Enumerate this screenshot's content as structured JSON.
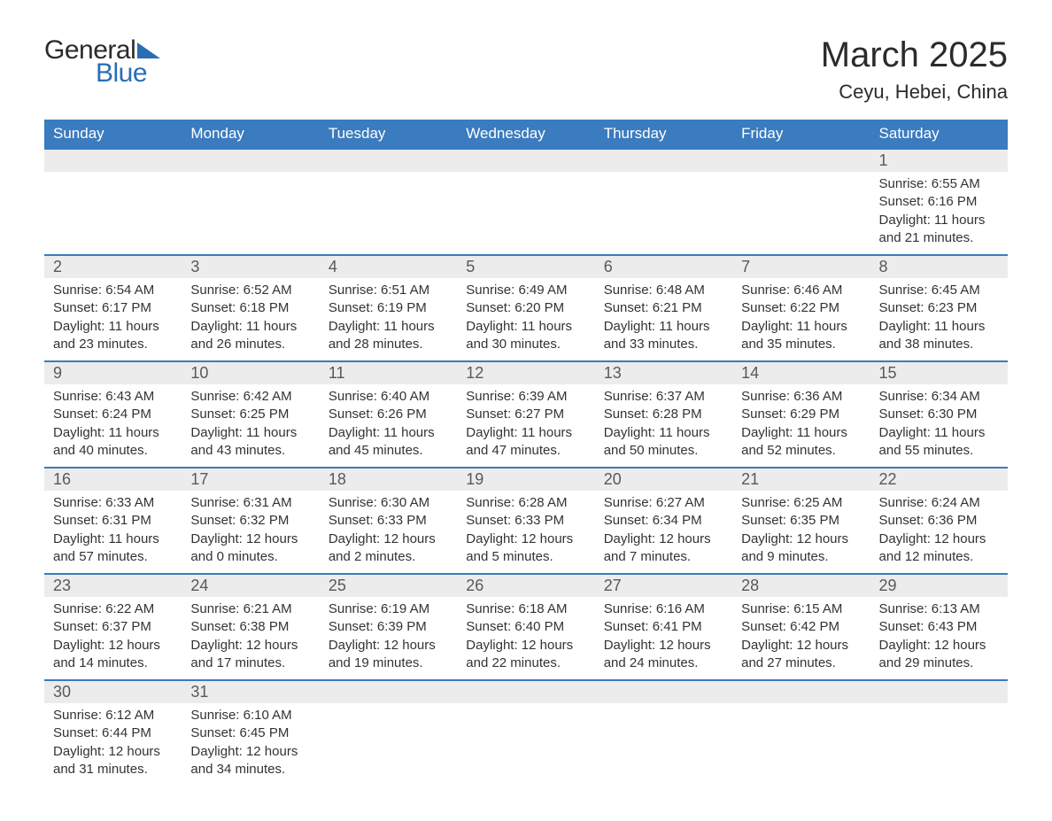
{
  "logo": {
    "line1": "General",
    "line2": "Blue"
  },
  "title": "March 2025",
  "location": "Ceyu, Hebei, China",
  "colors": {
    "header_bg": "#3b7bbf",
    "header_fg": "#ffffff",
    "daynum_bg": "#ececec",
    "daynum_fg": "#595959",
    "border": "#3b7bbf",
    "text": "#333333",
    "logo_blue": "#2a6db5"
  },
  "days_of_week": [
    "Sunday",
    "Monday",
    "Tuesday",
    "Wednesday",
    "Thursday",
    "Friday",
    "Saturday"
  ],
  "weeks": [
    [
      null,
      null,
      null,
      null,
      null,
      null,
      {
        "n": "1",
        "sr": "6:55 AM",
        "ss": "6:16 PM",
        "dh": "11",
        "dm": "21"
      }
    ],
    [
      {
        "n": "2",
        "sr": "6:54 AM",
        "ss": "6:17 PM",
        "dh": "11",
        "dm": "23"
      },
      {
        "n": "3",
        "sr": "6:52 AM",
        "ss": "6:18 PM",
        "dh": "11",
        "dm": "26"
      },
      {
        "n": "4",
        "sr": "6:51 AM",
        "ss": "6:19 PM",
        "dh": "11",
        "dm": "28"
      },
      {
        "n": "5",
        "sr": "6:49 AM",
        "ss": "6:20 PM",
        "dh": "11",
        "dm": "30"
      },
      {
        "n": "6",
        "sr": "6:48 AM",
        "ss": "6:21 PM",
        "dh": "11",
        "dm": "33"
      },
      {
        "n": "7",
        "sr": "6:46 AM",
        "ss": "6:22 PM",
        "dh": "11",
        "dm": "35"
      },
      {
        "n": "8",
        "sr": "6:45 AM",
        "ss": "6:23 PM",
        "dh": "11",
        "dm": "38"
      }
    ],
    [
      {
        "n": "9",
        "sr": "6:43 AM",
        "ss": "6:24 PM",
        "dh": "11",
        "dm": "40"
      },
      {
        "n": "10",
        "sr": "6:42 AM",
        "ss": "6:25 PM",
        "dh": "11",
        "dm": "43"
      },
      {
        "n": "11",
        "sr": "6:40 AM",
        "ss": "6:26 PM",
        "dh": "11",
        "dm": "45"
      },
      {
        "n": "12",
        "sr": "6:39 AM",
        "ss": "6:27 PM",
        "dh": "11",
        "dm": "47"
      },
      {
        "n": "13",
        "sr": "6:37 AM",
        "ss": "6:28 PM",
        "dh": "11",
        "dm": "50"
      },
      {
        "n": "14",
        "sr": "6:36 AM",
        "ss": "6:29 PM",
        "dh": "11",
        "dm": "52"
      },
      {
        "n": "15",
        "sr": "6:34 AM",
        "ss": "6:30 PM",
        "dh": "11",
        "dm": "55"
      }
    ],
    [
      {
        "n": "16",
        "sr": "6:33 AM",
        "ss": "6:31 PM",
        "dh": "11",
        "dm": "57"
      },
      {
        "n": "17",
        "sr": "6:31 AM",
        "ss": "6:32 PM",
        "dh": "12",
        "dm": "0"
      },
      {
        "n": "18",
        "sr": "6:30 AM",
        "ss": "6:33 PM",
        "dh": "12",
        "dm": "2"
      },
      {
        "n": "19",
        "sr": "6:28 AM",
        "ss": "6:33 PM",
        "dh": "12",
        "dm": "5"
      },
      {
        "n": "20",
        "sr": "6:27 AM",
        "ss": "6:34 PM",
        "dh": "12",
        "dm": "7"
      },
      {
        "n": "21",
        "sr": "6:25 AM",
        "ss": "6:35 PM",
        "dh": "12",
        "dm": "9"
      },
      {
        "n": "22",
        "sr": "6:24 AM",
        "ss": "6:36 PM",
        "dh": "12",
        "dm": "12"
      }
    ],
    [
      {
        "n": "23",
        "sr": "6:22 AM",
        "ss": "6:37 PM",
        "dh": "12",
        "dm": "14"
      },
      {
        "n": "24",
        "sr": "6:21 AM",
        "ss": "6:38 PM",
        "dh": "12",
        "dm": "17"
      },
      {
        "n": "25",
        "sr": "6:19 AM",
        "ss": "6:39 PM",
        "dh": "12",
        "dm": "19"
      },
      {
        "n": "26",
        "sr": "6:18 AM",
        "ss": "6:40 PM",
        "dh": "12",
        "dm": "22"
      },
      {
        "n": "27",
        "sr": "6:16 AM",
        "ss": "6:41 PM",
        "dh": "12",
        "dm": "24"
      },
      {
        "n": "28",
        "sr": "6:15 AM",
        "ss": "6:42 PM",
        "dh": "12",
        "dm": "27"
      },
      {
        "n": "29",
        "sr": "6:13 AM",
        "ss": "6:43 PM",
        "dh": "12",
        "dm": "29"
      }
    ],
    [
      {
        "n": "30",
        "sr": "6:12 AM",
        "ss": "6:44 PM",
        "dh": "12",
        "dm": "31"
      },
      {
        "n": "31",
        "sr": "6:10 AM",
        "ss": "6:45 PM",
        "dh": "12",
        "dm": "34"
      },
      null,
      null,
      null,
      null,
      null
    ]
  ],
  "labels": {
    "sunrise": "Sunrise:",
    "sunset": "Sunset:",
    "daylight_prefix": "Daylight:",
    "hours": "hours",
    "and": "and",
    "minutes": "minutes."
  }
}
